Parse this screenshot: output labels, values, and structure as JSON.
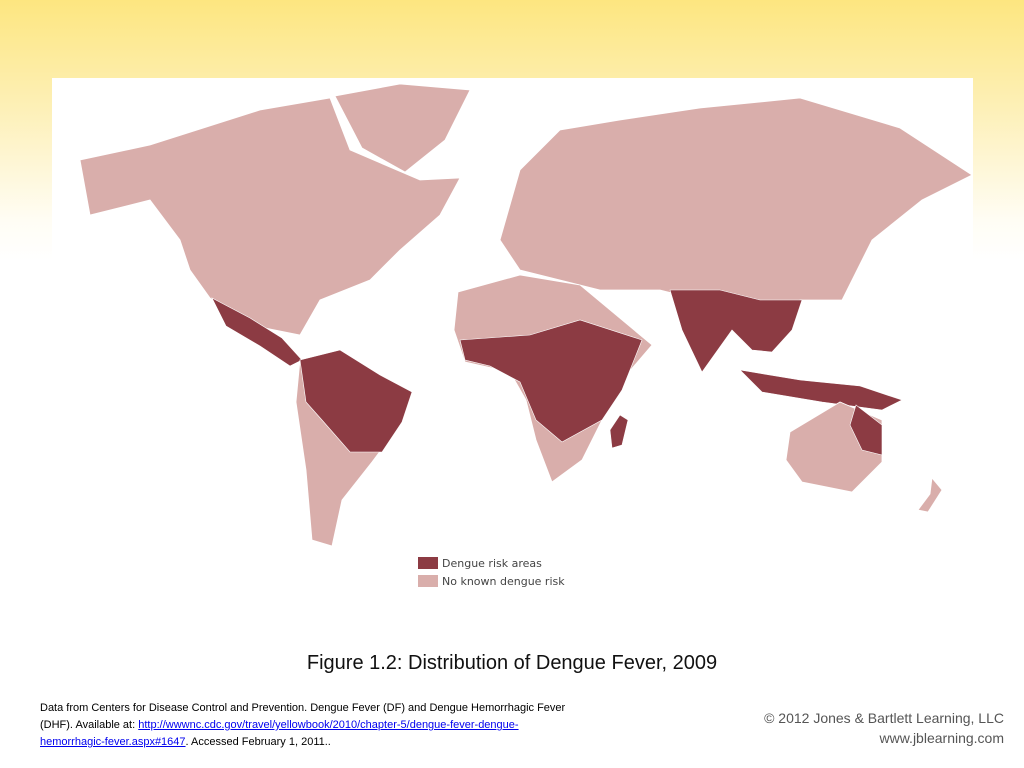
{
  "figure": {
    "legend": [
      "Dengue risk areas",
      "No known dengue risk"
    ],
    "caption": "Figure 1.2: Distribution of Dengue Fever, 2009"
  },
  "source": {
    "text": "Data from Centers for Disease Control and Prevention. Dengue Fever (DF) and Dengue Hemorrhagic Fever (DHF). Available at: ",
    "link": "http://wwwnc.cdc.gov/travel/yellowbook/2010/chapter-5/dengue-fever-dengue-hemorrhagic-fever.aspx#1647",
    "suffix": ". Accessed February 1, 2011.."
  },
  "copyright": [
    "© 2012 Jones & Bartlett Learning, LLC",
    "www.jblearning.com"
  ]
}
